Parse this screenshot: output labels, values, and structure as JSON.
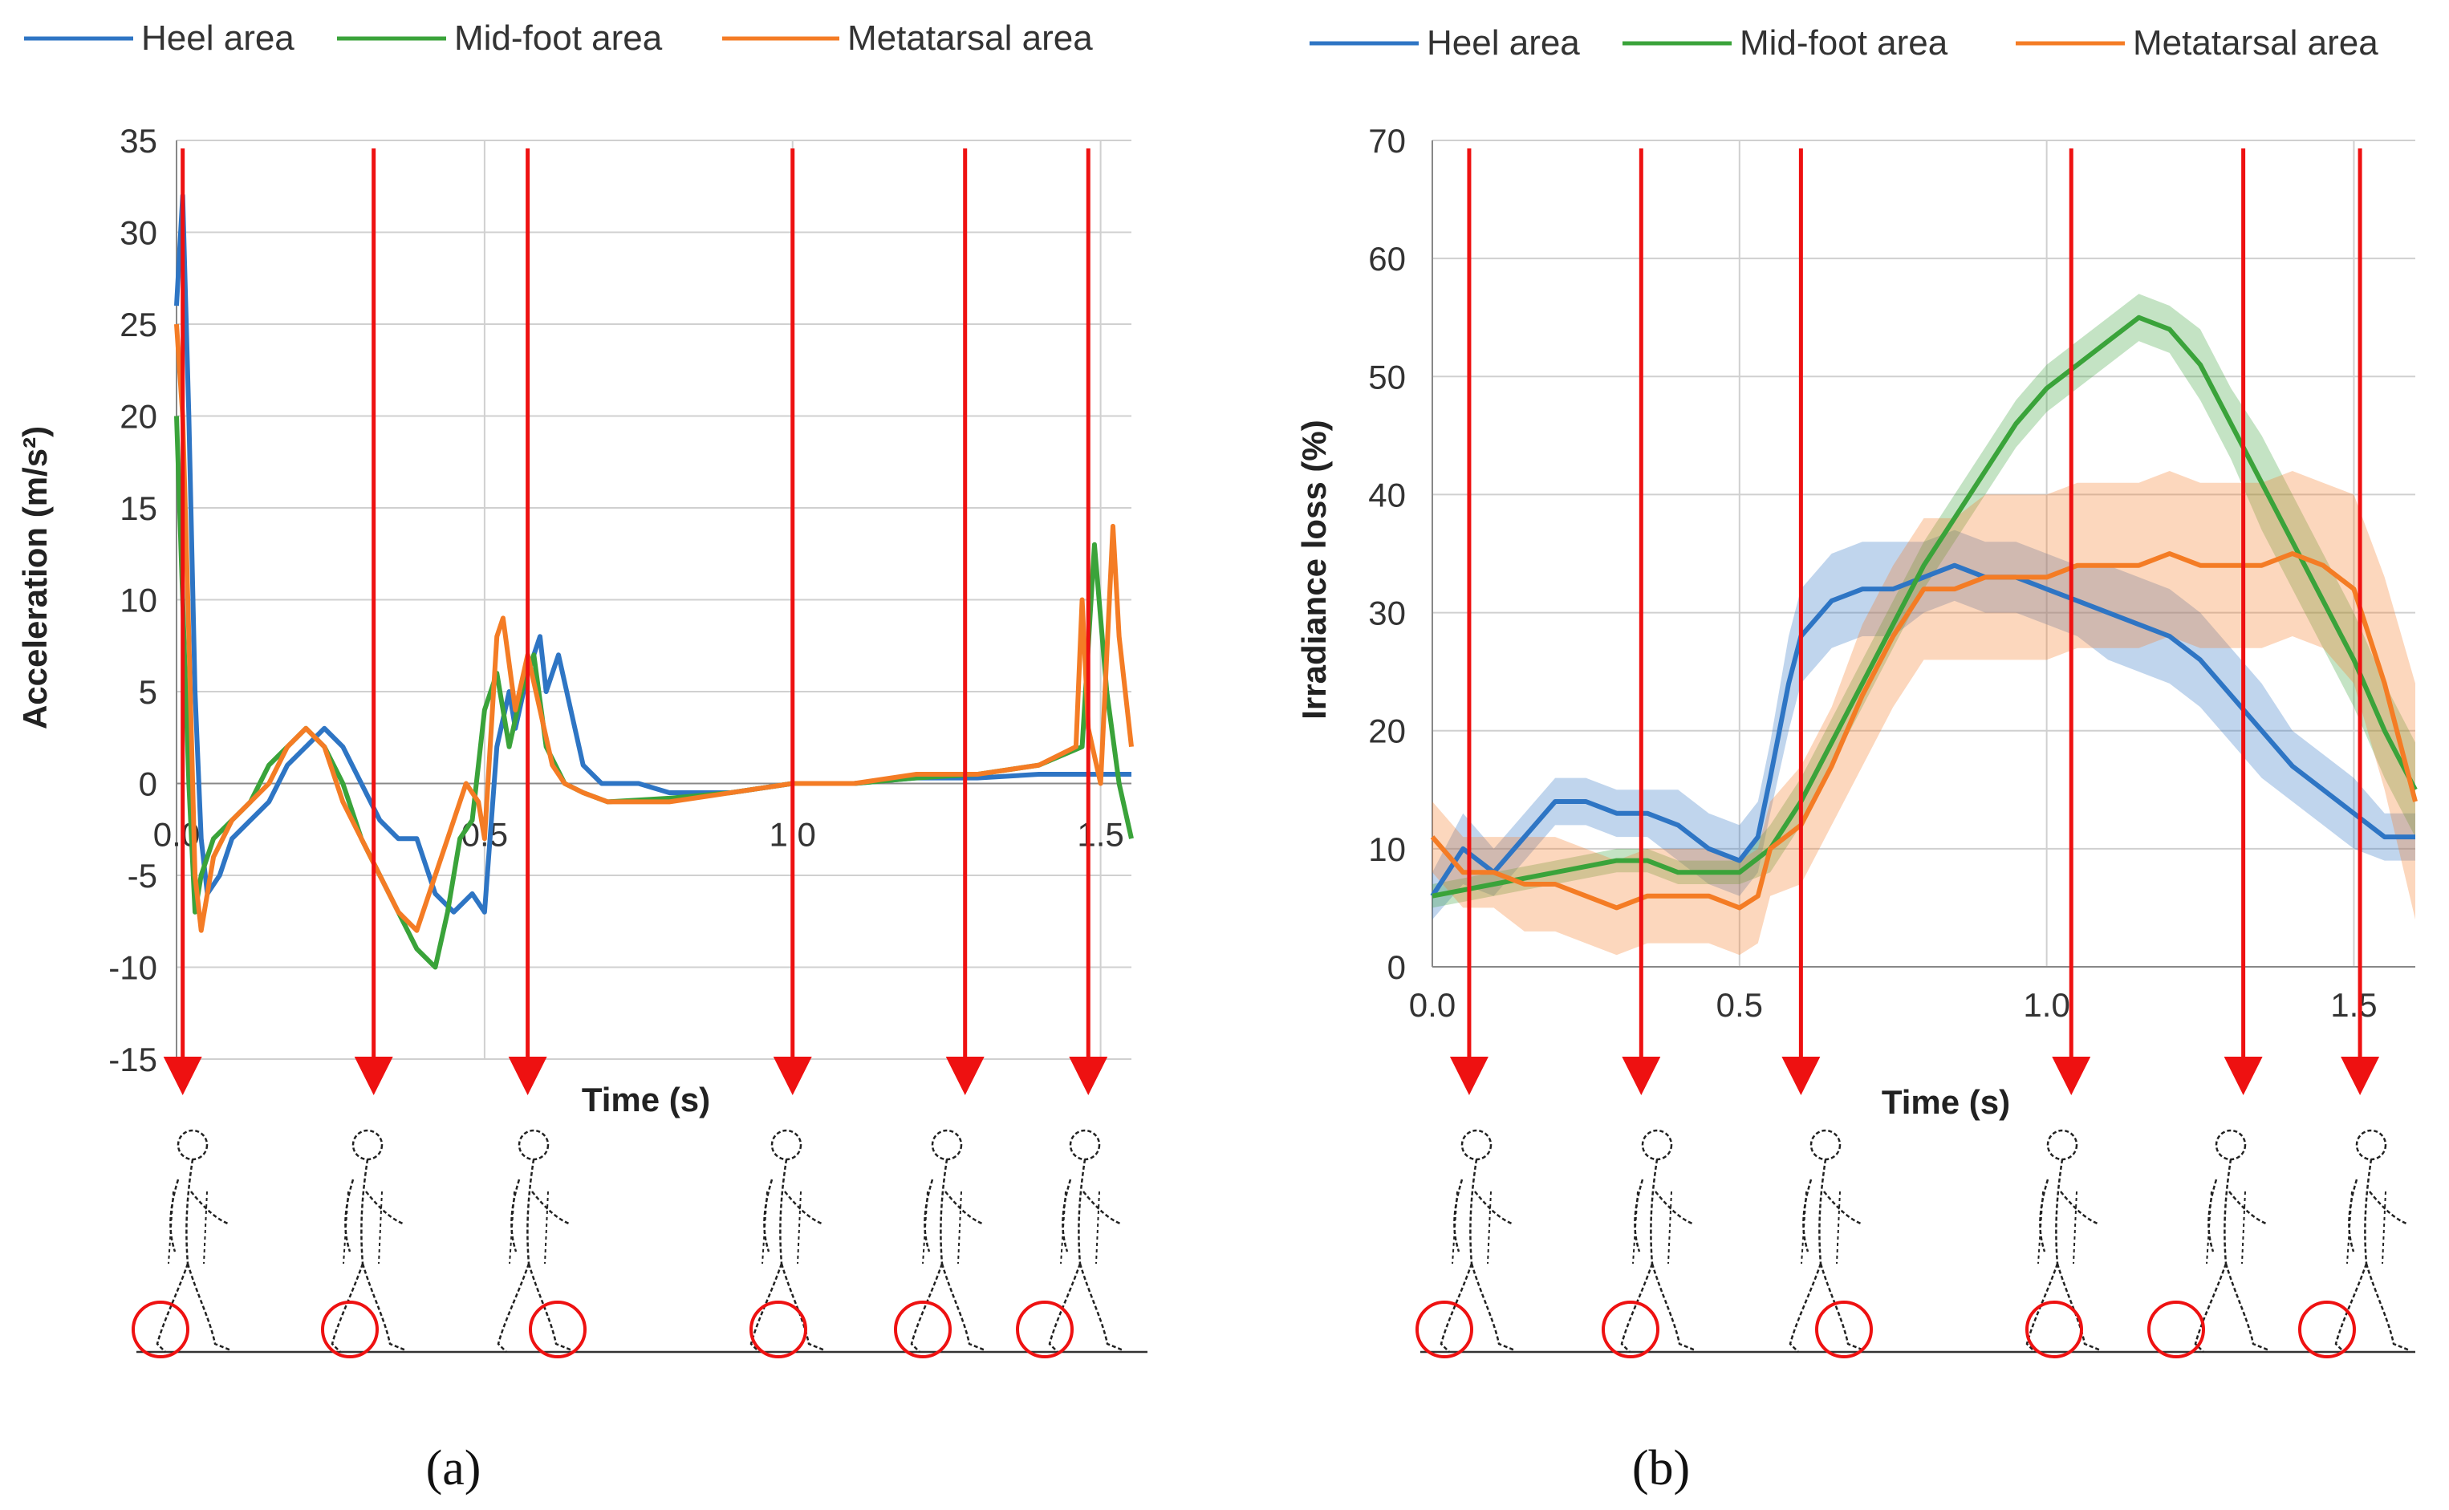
{
  "figure": {
    "panel_a_label": "(a)",
    "panel_b_label": "(b)",
    "colors": {
      "heel": "#2e75c4",
      "midfoot": "#3aa33a",
      "metatarsal": "#f47c25",
      "marker": "#ee1111",
      "grid": "#d0d0d0",
      "axis": "#888888"
    },
    "gait_figure_icon": "walking-person-figure"
  },
  "chart_data": [
    {
      "type": "line",
      "panel": "a",
      "title": "",
      "xlabel": "Time (s)",
      "ylabel": "Acceleration (m/s²)",
      "xlim": [
        0,
        1.55
      ],
      "ylim": [
        -15,
        35
      ],
      "x_ticks": [
        "0.0",
        "0.5",
        "1.0",
        "1.5"
      ],
      "x_tick_values": [
        0,
        0.5,
        1.0,
        1.5
      ],
      "y_ticks": [
        "-15",
        "-10",
        "-5",
        "0",
        "5",
        "10",
        "15",
        "20",
        "25",
        "30",
        "35"
      ],
      "y_tick_values": [
        -15,
        -10,
        -5,
        0,
        5,
        10,
        15,
        20,
        25,
        30,
        35
      ],
      "legend": [
        "Heel area",
        "Mid-foot area",
        "Metatarsal area"
      ],
      "legend_position": "top",
      "series": [
        {
          "name": "Heel area",
          "color_key": "heel",
          "x": [
            0,
            0.01,
            0.02,
            0.03,
            0.04,
            0.05,
            0.07,
            0.09,
            0.12,
            0.15,
            0.18,
            0.21,
            0.24,
            0.27,
            0.3,
            0.33,
            0.36,
            0.39,
            0.42,
            0.45,
            0.48,
            0.5,
            0.52,
            0.54,
            0.55,
            0.57,
            0.59,
            0.6,
            0.62,
            0.64,
            0.66,
            0.69,
            0.72,
            0.75,
            0.8,
            0.9,
            1.0,
            1.1,
            1.2,
            1.3,
            1.4,
            1.5,
            1.55
          ],
          "y": [
            26,
            32,
            20,
            5,
            -3,
            -6,
            -5,
            -3,
            -2,
            -1,
            1,
            2,
            3,
            2,
            0,
            -2,
            -3,
            -3,
            -6,
            -7,
            -6,
            -7,
            2,
            5,
            3,
            6,
            8,
            5,
            7,
            4,
            1,
            0,
            0,
            0,
            -0.5,
            -0.5,
            0,
            0,
            0.3,
            0.3,
            0.5,
            0.5,
            0.5
          ]
        },
        {
          "name": "Mid-foot area",
          "color_key": "midfoot",
          "x": [
            0,
            0.01,
            0.02,
            0.03,
            0.04,
            0.06,
            0.09,
            0.12,
            0.15,
            0.18,
            0.21,
            0.24,
            0.27,
            0.3,
            0.33,
            0.36,
            0.39,
            0.42,
            0.44,
            0.46,
            0.48,
            0.5,
            0.52,
            0.54,
            0.56,
            0.58,
            0.6,
            0.63,
            0.66,
            0.7,
            0.8,
            0.9,
            1.0,
            1.1,
            1.2,
            1.3,
            1.4,
            1.47,
            1.49,
            1.51,
            1.53,
            1.55
          ],
          "y": [
            20,
            10,
            0,
            -7,
            -5,
            -3,
            -2,
            -1,
            1,
            2,
            3,
            2,
            0,
            -3,
            -5,
            -7,
            -9,
            -10,
            -7,
            -3,
            -2,
            4,
            6,
            2,
            5,
            7,
            2,
            0,
            -0.5,
            -1,
            -0.8,
            -0.5,
            0,
            0,
            0.3,
            0.5,
            1,
            2,
            13,
            5,
            0,
            -3
          ]
        },
        {
          "name": "Metatarsal area",
          "color_key": "metatarsal",
          "x": [
            0,
            0.01,
            0.02,
            0.03,
            0.04,
            0.06,
            0.09,
            0.12,
            0.15,
            0.18,
            0.21,
            0.24,
            0.27,
            0.3,
            0.33,
            0.36,
            0.39,
            0.42,
            0.45,
            0.47,
            0.49,
            0.5,
            0.52,
            0.53,
            0.55,
            0.57,
            0.59,
            0.61,
            0.63,
            0.66,
            0.7,
            0.8,
            0.9,
            1.0,
            1.1,
            1.2,
            1.3,
            1.4,
            1.46,
            1.47,
            1.48,
            1.5,
            1.52,
            1.53,
            1.55
          ],
          "y": [
            25,
            20,
            8,
            -5,
            -8,
            -4,
            -2,
            -1,
            0,
            2,
            3,
            2,
            -1,
            -3,
            -5,
            -7,
            -8,
            -5,
            -2,
            0,
            -1,
            -3,
            8,
            9,
            4,
            7,
            4,
            1,
            0,
            -0.5,
            -1,
            -1,
            -0.5,
            0,
            0,
            0.5,
            0.5,
            1,
            2,
            10,
            3,
            0,
            14,
            8,
            2
          ]
        }
      ],
      "event_markers_x": [
        0.01,
        0.32,
        0.57,
        1.0,
        1.28,
        1.48
      ]
    },
    {
      "type": "line",
      "panel": "b",
      "title": "",
      "xlabel": "Time (s)",
      "ylabel": "Irradiance loss (%)",
      "xlim": [
        0,
        1.6
      ],
      "ylim": [
        0,
        70
      ],
      "x_ticks": [
        "0.0",
        "0.5",
        "1.0",
        "1.5"
      ],
      "x_tick_values": [
        0,
        0.5,
        1.0,
        1.5
      ],
      "y_ticks": [
        "0",
        "10",
        "20",
        "30",
        "40",
        "50",
        "60",
        "70"
      ],
      "y_tick_values": [
        0,
        10,
        20,
        30,
        40,
        50,
        60,
        70
      ],
      "legend": [
        "Heel area",
        "Mid-foot area",
        "Metatarsal area"
      ],
      "legend_position": "top",
      "series": [
        {
          "name": "Heel area",
          "color_key": "heel",
          "x": [
            0,
            0.05,
            0.1,
            0.15,
            0.2,
            0.25,
            0.3,
            0.35,
            0.4,
            0.45,
            0.5,
            0.53,
            0.55,
            0.58,
            0.6,
            0.65,
            0.7,
            0.75,
            0.8,
            0.85,
            0.9,
            0.95,
            1.0,
            1.05,
            1.1,
            1.15,
            1.2,
            1.25,
            1.3,
            1.35,
            1.4,
            1.45,
            1.5,
            1.55,
            1.6
          ],
          "y": [
            6,
            10,
            8,
            11,
            14,
            14,
            13,
            13,
            12,
            10,
            9,
            11,
            16,
            24,
            28,
            31,
            32,
            32,
            33,
            34,
            33,
            33,
            32,
            31,
            30,
            29,
            28,
            26,
            23,
            20,
            17,
            15,
            13,
            11,
            11
          ],
          "band": [
            2,
            3,
            2,
            2,
            2,
            2,
            2,
            2,
            3,
            3,
            3,
            3,
            3,
            4,
            4,
            4,
            4,
            4,
            3,
            3,
            3,
            3,
            3,
            3,
            4,
            4,
            4,
            4,
            4,
            4,
            3,
            3,
            3,
            2,
            2
          ]
        },
        {
          "name": "Mid-foot area",
          "color_key": "midfoot",
          "x": [
            0,
            0.1,
            0.2,
            0.3,
            0.35,
            0.4,
            0.45,
            0.5,
            0.55,
            0.6,
            0.65,
            0.7,
            0.75,
            0.8,
            0.85,
            0.9,
            0.95,
            1.0,
            1.05,
            1.1,
            1.15,
            1.2,
            1.25,
            1.3,
            1.35,
            1.4,
            1.45,
            1.5,
            1.55,
            1.6
          ],
          "y": [
            6,
            7,
            8,
            9,
            9,
            8,
            8,
            8,
            10,
            14,
            19,
            24,
            29,
            34,
            38,
            42,
            46,
            49,
            51,
            53,
            55,
            54,
            51,
            46,
            41,
            36,
            31,
            26,
            20,
            15
          ],
          "band": [
            1,
            1,
            1,
            1,
            1,
            1,
            1,
            1,
            2,
            2,
            2,
            2,
            2,
            2,
            2,
            2,
            2,
            2,
            2,
            2,
            2,
            2,
            3,
            3,
            4,
            4,
            4,
            4,
            4,
            4
          ]
        },
        {
          "name": "Metatarsal area",
          "color_key": "metatarsal",
          "x": [
            0,
            0.05,
            0.1,
            0.15,
            0.2,
            0.25,
            0.3,
            0.35,
            0.4,
            0.45,
            0.5,
            0.53,
            0.55,
            0.6,
            0.65,
            0.7,
            0.75,
            0.8,
            0.85,
            0.9,
            0.95,
            1.0,
            1.05,
            1.1,
            1.15,
            1.2,
            1.25,
            1.3,
            1.35,
            1.4,
            1.45,
            1.5,
            1.55,
            1.6
          ],
          "y": [
            11,
            8,
            8,
            7,
            7,
            6,
            5,
            6,
            6,
            6,
            5,
            6,
            10,
            12,
            17,
            23,
            28,
            32,
            32,
            33,
            33,
            33,
            34,
            34,
            34,
            35,
            34,
            34,
            34,
            35,
            34,
            32,
            24,
            14
          ],
          "band": [
            3,
            3,
            3,
            4,
            4,
            4,
            4,
            4,
            4,
            4,
            4,
            4,
            4,
            5,
            5,
            6,
            6,
            6,
            6,
            7,
            7,
            7,
            7,
            7,
            7,
            7,
            7,
            7,
            7,
            7,
            7,
            8,
            9,
            10
          ]
        }
      ],
      "event_markers_x": [
        0.06,
        0.34,
        0.6,
        1.04,
        1.32,
        1.51
      ]
    }
  ]
}
